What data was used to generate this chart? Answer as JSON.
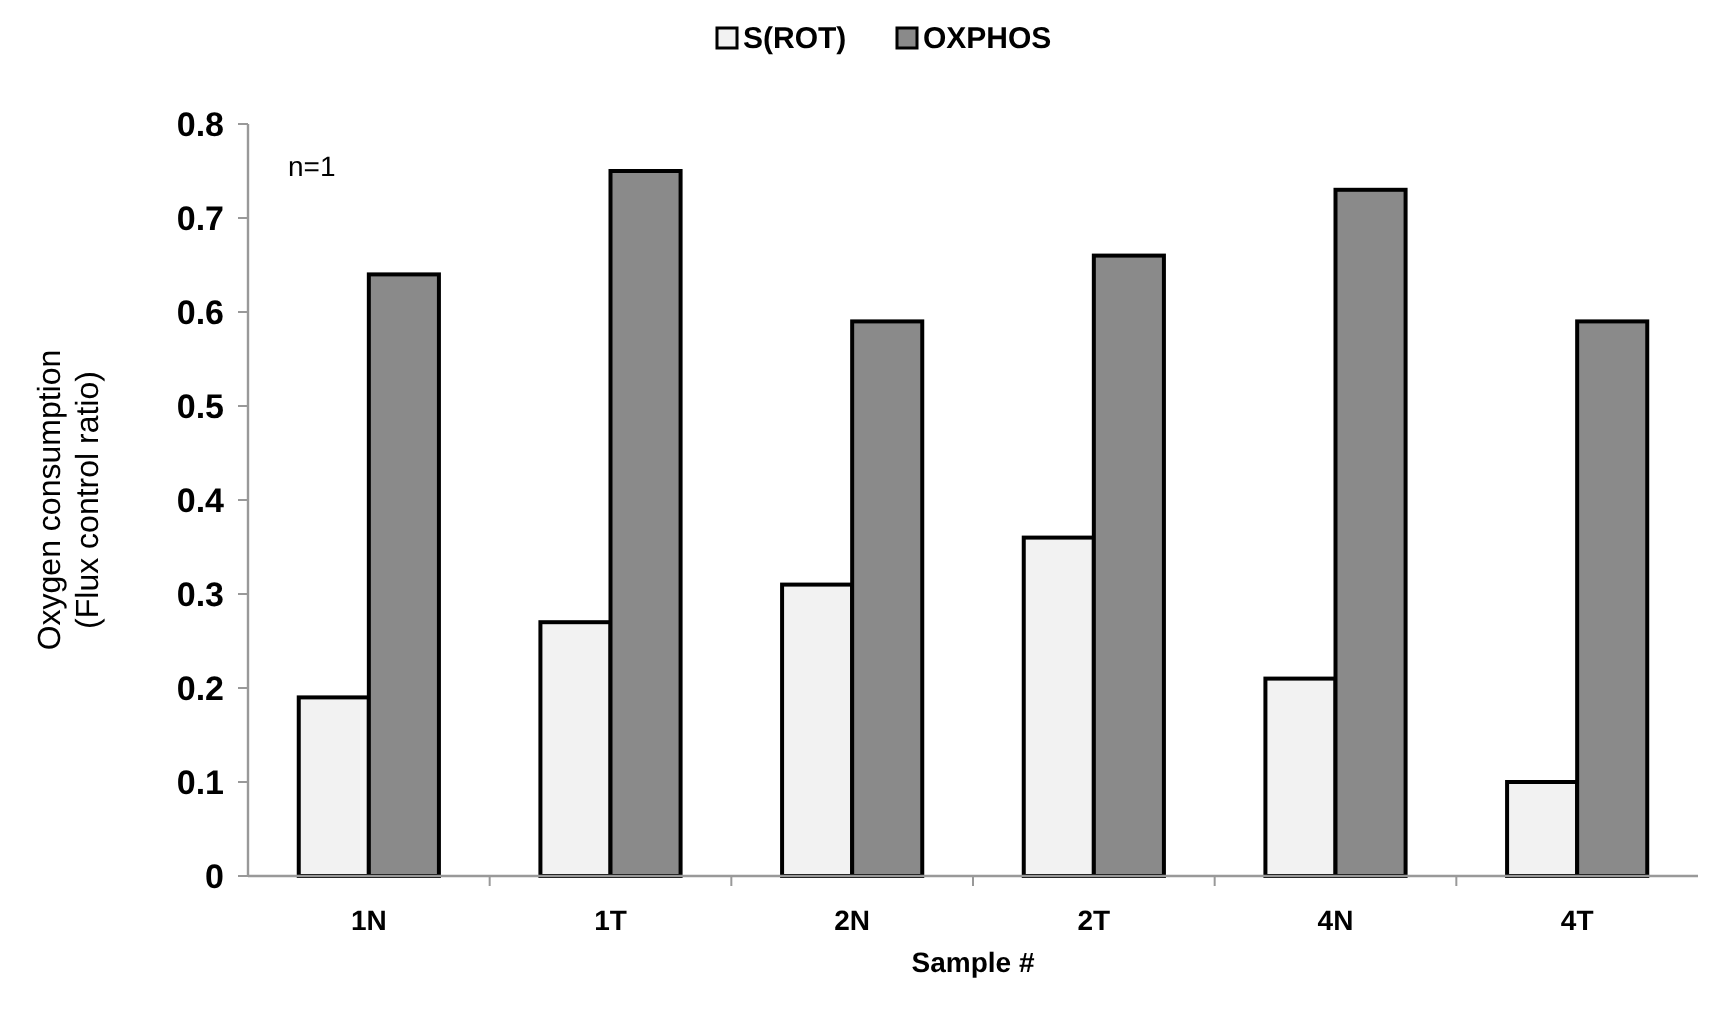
{
  "chart_data": {
    "type": "bar",
    "xlabel": "Sample #",
    "ylabel": "Oxygen consumption\n(Flux control ratio)",
    "annotations": [
      "n=1"
    ],
    "categories": [
      "1N",
      "1T",
      "2N",
      "2T",
      "4N",
      "4T"
    ],
    "series": [
      {
        "name": "S(ROT)",
        "color": "#f2f2f2",
        "values": [
          0.19,
          0.27,
          0.31,
          0.36,
          0.21,
          0.1
        ]
      },
      {
        "name": "OXPHOS",
        "color": "#8a8a8a",
        "values": [
          0.64,
          0.75,
          0.59,
          0.66,
          0.73,
          0.59
        ]
      }
    ],
    "ylim": [
      0,
      0.8
    ],
    "yticks": [
      {
        "value": 0,
        "label": "0"
      },
      0.1,
      0.2,
      0.3,
      0.4,
      0.5,
      0.6,
      0.7,
      0.8
    ],
    "grid": false,
    "legend": "top"
  }
}
